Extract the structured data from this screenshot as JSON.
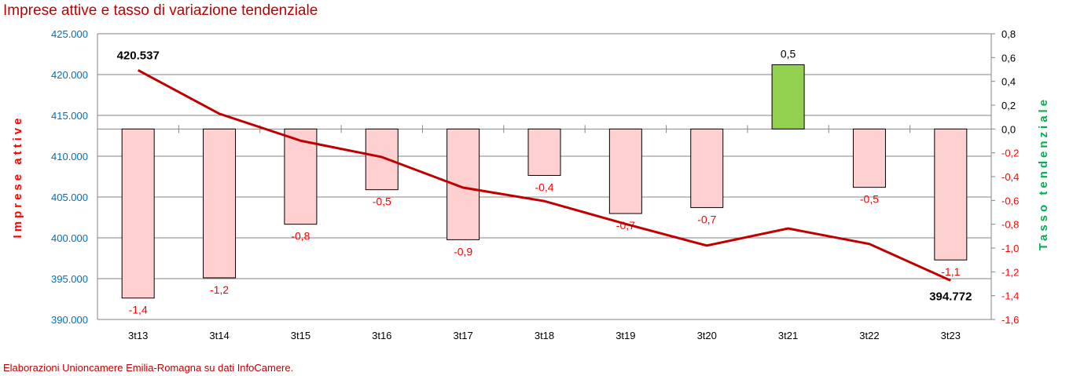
{
  "chart_data": {
    "type": "bar+line",
    "title": "Imprese attive e tasso di variazione tendenziale",
    "source": "Elaborazioni Unioncamere Emilia-Romagna su dati InfoCamere.",
    "categories": [
      "3t13",
      "3t14",
      "3t15",
      "3t16",
      "3t17",
      "3t18",
      "3t19",
      "3t20",
      "3t21",
      "3t22",
      "3t23"
    ],
    "line": {
      "name": "Imprese attive",
      "axis": "left",
      "color": "#c00000",
      "values": [
        420537,
        415200,
        411900,
        409900,
        406150,
        404500,
        401700,
        399050,
        401150,
        399250,
        394772
      ],
      "labels": {
        "first": "420.537",
        "last": "394.772"
      }
    },
    "bars": {
      "name": "Tasso tendenziale",
      "axis": "right",
      "values": [
        -1.42,
        -1.25,
        -0.8,
        -0.51,
        -0.93,
        -0.39,
        -0.71,
        -0.66,
        0.54,
        -0.49,
        -1.1
      ],
      "labels": [
        "-1,4",
        "-1,2",
        "-0,8",
        "-0,5",
        "-0,9",
        "-0,4",
        "-0,7",
        "-0,7",
        "0,5",
        "-0,5",
        "-1,1"
      ],
      "neg_color": "#ffd0d0",
      "pos_color": "#92d050"
    },
    "ylabel_left": "Imprese attive",
    "ylabel_right": "Tasso tendenziale",
    "ylim_left": [
      390000,
      425000
    ],
    "ylim_right": [
      -1.6,
      0.8
    ],
    "left_ticks": [
      "390.000",
      "395.000",
      "400.000",
      "405.000",
      "410.000",
      "415.000",
      "420.000",
      "425.000"
    ],
    "right_ticks": [
      "-1,6",
      "-1,4",
      "-1,2",
      "-1,0",
      "-0,8",
      "-0,6",
      "-0,4",
      "-0,2",
      "0,0",
      "0,2",
      "0,4",
      "0,6",
      "0,8"
    ],
    "grid": true
  }
}
